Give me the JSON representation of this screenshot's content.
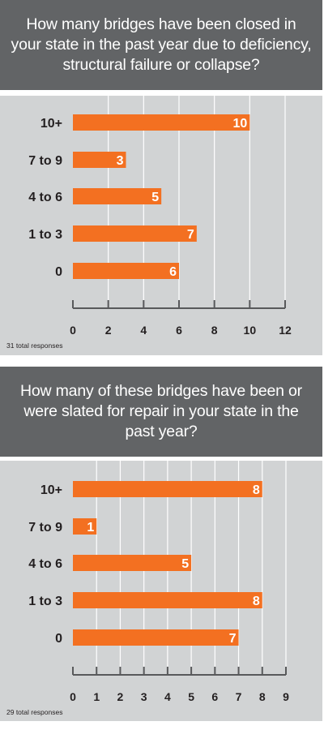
{
  "charts": [
    {
      "title": "How many bridges have been closed in your state in the past year due to deficiency, structural failure or collapse?",
      "note": "31 total responses"
    },
    {
      "title": "How many of these bridges have been or were slated for repair in your state in the past year?",
      "note": "29 total responses"
    }
  ],
  "colors": {
    "bar": "#f37021",
    "header": "#626466",
    "plot_bg": "#d1d3d4",
    "grid": "#ffffff"
  },
  "chart_data": [
    {
      "type": "bar",
      "orientation": "horizontal",
      "title": "How many bridges have been closed in your state in the past year due to deficiency, structural failure or collapse?",
      "categories": [
        "10+",
        "7 to 9",
        "4 to 6",
        "1 to 3",
        "0"
      ],
      "values": [
        10,
        3,
        5,
        7,
        6
      ],
      "xlim": [
        0,
        12
      ],
      "xticks": [
        0,
        2,
        4,
        6,
        8,
        10,
        12
      ],
      "grid": true,
      "data_labels": true,
      "annotation": "31 total responses"
    },
    {
      "type": "bar",
      "orientation": "horizontal",
      "title": "How many of these bridges have been or were slated for repair in your state in the past year?",
      "categories": [
        "10+",
        "7 to 9",
        "4 to 6",
        "1 to 3",
        "0"
      ],
      "values": [
        8,
        1,
        5,
        8,
        7
      ],
      "xlim": [
        0,
        9
      ],
      "xticks": [
        0,
        1,
        2,
        3,
        4,
        5,
        6,
        7,
        8,
        9
      ],
      "grid": true,
      "data_labels": true,
      "annotation": "29 total responses"
    }
  ]
}
